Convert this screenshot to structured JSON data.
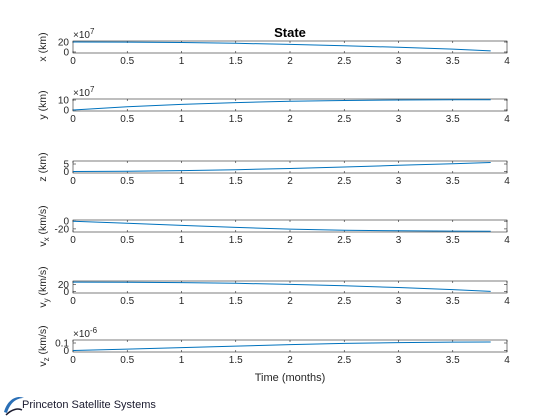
{
  "figure": {
    "title": "State",
    "xlabel": "Time (months)"
  },
  "logo": {
    "text": "Princeton Satellite Systems",
    "colors": [
      "#2a6fb6",
      "#1a1a2e"
    ]
  },
  "colors": {
    "line": "#0072bd",
    "axes": "#262626",
    "tick_text": "#262626"
  },
  "chart_data": [
    {
      "type": "line",
      "ylabel": "x (km)",
      "exponent": "×10^7",
      "xlim": [
        0,
        4
      ],
      "ylim": [
        -2,
        22
      ],
      "xticks": [
        "0",
        "0.5",
        "1",
        "1.5",
        "2",
        "2.5",
        "3",
        "3.5",
        "4"
      ],
      "yticks": [
        {
          "v": 0,
          "label": "0"
        },
        {
          "v": 20,
          "label": "20"
        }
      ],
      "series": [
        {
          "x": [
            0,
            0.5,
            1,
            1.5,
            2,
            2.5,
            3,
            3.5,
            3.85
          ],
          "y": [
            20,
            19.8,
            18.9,
            17.4,
            15.3,
            12.6,
            9.4,
            5.7,
            2.3
          ]
        }
      ]
    },
    {
      "type": "line",
      "ylabel": "y (km)",
      "exponent": "×10^7",
      "xlim": [
        0,
        4
      ],
      "ylim": [
        -1,
        11
      ],
      "xticks": [
        "0",
        "0.5",
        "1",
        "1.5",
        "2",
        "2.5",
        "3",
        "3.5",
        "4"
      ],
      "yticks": [
        {
          "v": 0,
          "label": "0"
        },
        {
          "v": 10,
          "label": "10"
        }
      ],
      "series": [
        {
          "x": [
            0,
            0.5,
            1,
            1.5,
            2,
            2.5,
            3,
            3.5,
            3.85
          ],
          "y": [
            0,
            3.2,
            5.6,
            7.4,
            8.7,
            9.5,
            10.0,
            10.2,
            10.2
          ]
        }
      ]
    },
    {
      "type": "line",
      "ylabel": "z (km)",
      "exponent": "",
      "xlim": [
        0,
        4
      ],
      "ylim": [
        -1,
        7
      ],
      "xticks": [
        "0",
        "0.5",
        "1",
        "1.5",
        "2",
        "2.5",
        "3",
        "3.5",
        "4"
      ],
      "yticks": [
        {
          "v": 0,
          "label": "0"
        },
        {
          "v": 5,
          "label": "5"
        }
      ],
      "series": [
        {
          "x": [
            0,
            0.5,
            1,
            1.5,
            2,
            2.5,
            3,
            3.5,
            3.85
          ],
          "y": [
            0,
            0.2,
            0.6,
            1.2,
            2.0,
            3.0,
            4.1,
            5.2,
            6.0
          ]
        }
      ]
    },
    {
      "type": "line",
      "ylabel": "v_x (km/s)",
      "exponent": "",
      "xlim": [
        0,
        4
      ],
      "ylim": [
        -28,
        3
      ],
      "xticks": [
        "0",
        "0.5",
        "1",
        "1.5",
        "2",
        "2.5",
        "3",
        "3.5",
        "4"
      ],
      "yticks": [
        {
          "v": 0,
          "label": "0"
        },
        {
          "v": -20,
          "label": "-20"
        }
      ],
      "series": [
        {
          "x": [
            0,
            0.5,
            1,
            1.5,
            2,
            2.5,
            3,
            3.5,
            3.85
          ],
          "y": [
            0,
            -5.5,
            -11.0,
            -16.0,
            -20.5,
            -23.5,
            -25.0,
            -25.8,
            -26.0
          ]
        }
      ]
    },
    {
      "type": "line",
      "ylabel": "v_y (km/s)",
      "exponent": "",
      "xlim": [
        0,
        4
      ],
      "ylim": [
        -4,
        30
      ],
      "xticks": [
        "0",
        "0.5",
        "1",
        "1.5",
        "2",
        "2.5",
        "3",
        "3.5",
        "4"
      ],
      "yticks": [
        {
          "v": 0,
          "label": "0"
        },
        {
          "v": 20,
          "label": "20"
        }
      ],
      "series": [
        {
          "x": [
            0,
            0.5,
            1,
            1.5,
            2,
            2.5,
            3,
            3.5,
            3.85
          ],
          "y": [
            27,
            26.6,
            25.5,
            23.5,
            20.5,
            16.5,
            11.5,
            5.5,
            0.5
          ]
        }
      ]
    },
    {
      "type": "line",
      "ylabel": "v_z (km/s)",
      "exponent": "×10^-6",
      "xlim": [
        0,
        4
      ],
      "ylim": [
        -0.02,
        0.14
      ],
      "xticks": [
        "0",
        "0.5",
        "1",
        "1.5",
        "2",
        "2.5",
        "3",
        "3.5",
        "4"
      ],
      "yticks": [
        {
          "v": 0,
          "label": "0"
        },
        {
          "v": 0.1,
          "label": "0.1"
        }
      ],
      "series": [
        {
          "x": [
            0,
            0.5,
            1,
            1.5,
            2,
            2.5,
            3,
            3.5,
            3.85
          ],
          "y": [
            0,
            0.018,
            0.038,
            0.058,
            0.078,
            0.094,
            0.106,
            0.112,
            0.113
          ]
        }
      ]
    }
  ]
}
